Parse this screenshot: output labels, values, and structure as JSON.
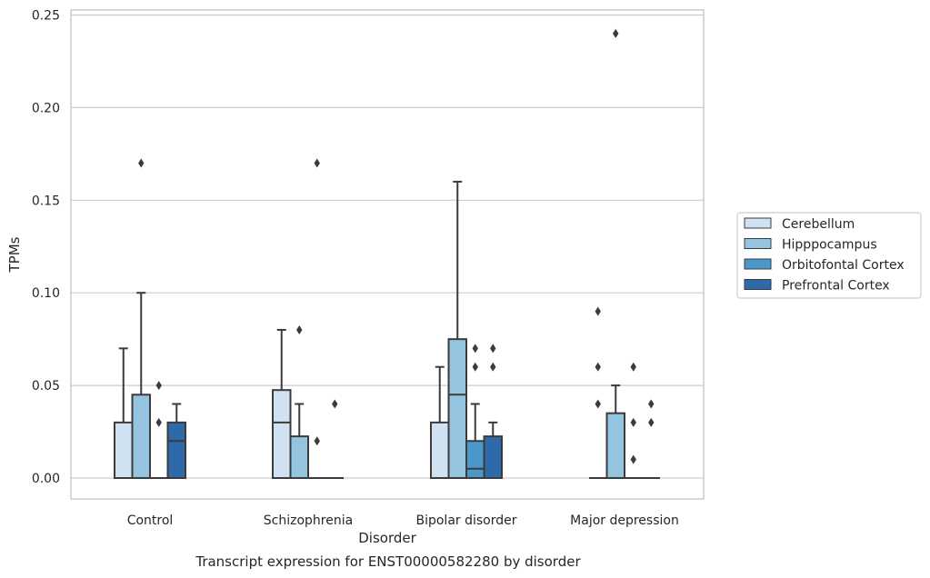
{
  "chart_data": {
    "type": "box",
    "title": "",
    "caption": "Transcript expression for ENST00000582280 by disorder",
    "xlabel": "Disorder",
    "ylabel": "TPMs",
    "ylim": [
      -0.012,
      0.252
    ],
    "yticks": [
      "0.00",
      "0.05",
      "0.10",
      "0.15",
      "0.20",
      "0.25"
    ],
    "ytick_values": [
      0,
      0.05,
      0.1,
      0.15,
      0.2,
      0.25
    ],
    "grid": "horizontal",
    "legend_position": "right",
    "categories": [
      "Control",
      "Schizophrenia",
      "Bipolar disorder",
      "Major depression"
    ],
    "series": [
      {
        "name": "Cerebellum",
        "color": "#d0e1f2",
        "boxes": [
          {
            "q1": 0,
            "median": 0,
            "q3": 0.03,
            "whisker_low": 0,
            "whisker_high": 0.07,
            "outliers": []
          },
          {
            "q1": 0,
            "median": 0.03,
            "q3": 0.0475,
            "whisker_low": 0,
            "whisker_high": 0.08,
            "outliers": []
          },
          {
            "q1": 0,
            "median": 0,
            "q3": 0.03,
            "whisker_low": 0,
            "whisker_high": 0.06,
            "outliers": []
          },
          {
            "q1": 0,
            "median": 0,
            "q3": 0,
            "whisker_low": 0,
            "whisker_high": 0,
            "outliers": [
              0.09,
              0.06,
              0.04
            ]
          }
        ]
      },
      {
        "name": "Hipppocampus",
        "color": "#94c4df",
        "boxes": [
          {
            "q1": 0,
            "median": 0,
            "q3": 0.045,
            "whisker_low": 0,
            "whisker_high": 0.1,
            "outliers": [
              0.17
            ]
          },
          {
            "q1": 0,
            "median": 0,
            "q3": 0.0225,
            "whisker_low": 0,
            "whisker_high": 0.04,
            "outliers": [
              0.08
            ]
          },
          {
            "q1": 0,
            "median": 0.045,
            "q3": 0.075,
            "whisker_low": 0,
            "whisker_high": 0.16,
            "outliers": []
          },
          {
            "q1": 0,
            "median": 0,
            "q3": 0.035,
            "whisker_low": 0,
            "whisker_high": 0.05,
            "outliers": [
              0.24
            ]
          }
        ]
      },
      {
        "name": "Orbitofontal Cortex",
        "color": "#4a98c9",
        "boxes": [
          {
            "q1": 0,
            "median": 0,
            "q3": 0,
            "whisker_low": 0,
            "whisker_high": 0,
            "outliers": [
              0.05,
              0.03
            ]
          },
          {
            "q1": 0,
            "median": 0,
            "q3": 0,
            "whisker_low": 0,
            "whisker_high": 0,
            "outliers": [
              0.17,
              0.02
            ]
          },
          {
            "q1": 0,
            "median": 0.005,
            "q3": 0.02,
            "whisker_low": 0,
            "whisker_high": 0.04,
            "outliers": [
              0.07,
              0.06
            ]
          },
          {
            "q1": 0,
            "median": 0,
            "q3": 0,
            "whisker_low": 0,
            "whisker_high": 0,
            "outliers": [
              0.06,
              0.03,
              0.01
            ]
          }
        ]
      },
      {
        "name": "Prefrontal Cortex",
        "color": "#2e6aa9",
        "boxes": [
          {
            "q1": 0,
            "median": 0.02,
            "q3": 0.03,
            "whisker_low": 0,
            "whisker_high": 0.04,
            "outliers": []
          },
          {
            "q1": 0,
            "median": 0,
            "q3": 0,
            "whisker_low": 0,
            "whisker_high": 0,
            "outliers": [
              0.04
            ]
          },
          {
            "q1": 0,
            "median": 0,
            "q3": 0.0225,
            "whisker_low": 0,
            "whisker_high": 0.03,
            "outliers": [
              0.07,
              0.06
            ]
          },
          {
            "q1": 0,
            "median": 0,
            "q3": 0,
            "whisker_low": 0,
            "whisker_high": 0,
            "outliers": [
              0.04,
              0.03
            ]
          }
        ]
      }
    ]
  }
}
